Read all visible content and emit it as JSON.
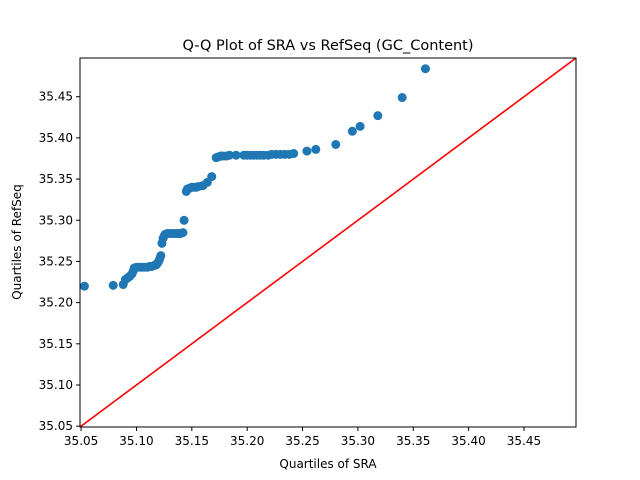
{
  "chart_data": {
    "type": "scatter",
    "title": "Q-Q Plot of SRA vs RefSeq (GC_Content)",
    "xlabel": "Quartiles of SRA",
    "ylabel": "Quartiles of RefSeq",
    "xlim": [
      35.049,
      35.497
    ],
    "ylim": [
      35.049,
      35.497
    ],
    "xticks": [
      35.05,
      35.1,
      35.15,
      35.2,
      35.25,
      35.3,
      35.35,
      35.4,
      35.45
    ],
    "xtick_labels": [
      "35.05",
      "35.10",
      "35.15",
      "35.20",
      "35.25",
      "35.30",
      "35.35",
      "35.40",
      "35.45"
    ],
    "yticks": [
      35.05,
      35.1,
      35.15,
      35.2,
      35.25,
      35.3,
      35.35,
      35.4,
      35.45
    ],
    "ytick_labels": [
      "35.05",
      "35.10",
      "35.15",
      "35.20",
      "35.25",
      "35.30",
      "35.35",
      "35.40",
      "35.45"
    ],
    "grid": false,
    "legend": "none",
    "series": [
      {
        "kind": "points",
        "color": "#1f77b4",
        "points": [
          [
            35.053,
            35.22
          ],
          [
            35.079,
            35.221
          ],
          [
            35.088,
            35.222
          ],
          [
            35.09,
            35.228
          ],
          [
            35.092,
            35.23
          ],
          [
            35.094,
            35.232
          ],
          [
            35.096,
            35.235
          ],
          [
            35.097,
            35.238
          ],
          [
            35.098,
            35.242
          ],
          [
            35.1,
            35.243
          ],
          [
            35.102,
            35.243
          ],
          [
            35.104,
            35.243
          ],
          [
            35.106,
            35.243
          ],
          [
            35.108,
            35.243
          ],
          [
            35.11,
            35.243
          ],
          [
            35.112,
            35.244
          ],
          [
            35.114,
            35.244
          ],
          [
            35.116,
            35.245
          ],
          [
            35.118,
            35.246
          ],
          [
            35.119,
            35.248
          ],
          [
            35.12,
            35.25
          ],
          [
            35.121,
            35.253
          ],
          [
            35.122,
            35.257
          ],
          [
            35.123,
            35.272
          ],
          [
            35.124,
            35.278
          ],
          [
            35.125,
            35.281
          ],
          [
            35.126,
            35.283
          ],
          [
            35.128,
            35.284
          ],
          [
            35.13,
            35.284
          ],
          [
            35.132,
            35.284
          ],
          [
            35.134,
            35.284
          ],
          [
            35.136,
            35.284
          ],
          [
            35.138,
            35.284
          ],
          [
            35.14,
            35.284
          ],
          [
            35.142,
            35.285
          ],
          [
            35.143,
            35.3
          ],
          [
            35.145,
            35.335
          ],
          [
            35.146,
            35.338
          ],
          [
            35.148,
            35.339
          ],
          [
            35.15,
            35.34
          ],
          [
            35.152,
            35.34
          ],
          [
            35.154,
            35.34
          ],
          [
            35.156,
            35.341
          ],
          [
            35.16,
            35.342
          ],
          [
            35.164,
            35.346
          ],
          [
            35.168,
            35.353
          ],
          [
            35.172,
            35.376
          ],
          [
            35.174,
            35.377
          ],
          [
            35.176,
            35.378
          ],
          [
            35.178,
            35.378
          ],
          [
            35.181,
            35.378
          ],
          [
            35.184,
            35.379
          ],
          [
            35.19,
            35.379
          ],
          [
            35.197,
            35.379
          ],
          [
            35.2,
            35.379
          ],
          [
            35.203,
            35.379
          ],
          [
            35.206,
            35.379
          ],
          [
            35.209,
            35.379
          ],
          [
            35.212,
            35.379
          ],
          [
            35.215,
            35.379
          ],
          [
            35.219,
            35.379
          ],
          [
            35.222,
            35.38
          ],
          [
            35.226,
            35.38
          ],
          [
            35.23,
            35.38
          ],
          [
            35.234,
            35.38
          ],
          [
            35.238,
            35.38
          ],
          [
            35.242,
            35.381
          ],
          [
            35.254,
            35.384
          ],
          [
            35.262,
            35.386
          ],
          [
            35.28,
            35.392
          ],
          [
            35.295,
            35.408
          ],
          [
            35.302,
            35.414
          ],
          [
            35.318,
            35.427
          ],
          [
            35.34,
            35.449
          ],
          [
            35.361,
            35.484
          ]
        ]
      },
      {
        "kind": "reference-line",
        "color": "#ff0000",
        "x": [
          35.049,
          35.497
        ],
        "y": [
          35.049,
          35.497
        ]
      }
    ]
  }
}
